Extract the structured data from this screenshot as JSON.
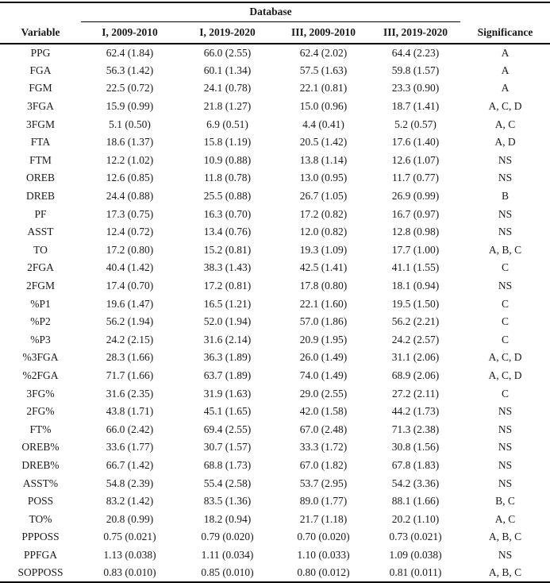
{
  "table": {
    "group_header": "Database",
    "columns": [
      "Variable",
      "I, 2009-2010",
      "I, 2019-2020",
      "III, 2009-2010",
      "III, 2019-2020",
      "Significance"
    ],
    "rows": [
      {
        "variable": "PPG",
        "values": [
          "62.4 (1.84)",
          "66.0 (2.55)",
          "62.4 (2.02)",
          "64.4 (2.23)"
        ],
        "significance": "A"
      },
      {
        "variable": "FGA",
        "values": [
          "56.3 (1.42)",
          "60.1 (1.34)",
          "57.5 (1.63)",
          "59.8 (1.57)"
        ],
        "significance": "A"
      },
      {
        "variable": "FGM",
        "values": [
          "22.5 (0.72)",
          "24.1 (0.78)",
          "22.1 (0.81)",
          "23.3 (0.90)"
        ],
        "significance": "A"
      },
      {
        "variable": "3FGA",
        "values": [
          "15.9 (0.99)",
          "21.8 (1.27)",
          "15.0 (0.96)",
          "18.7 (1.41)"
        ],
        "significance": "A, C, D"
      },
      {
        "variable": "3FGM",
        "values": [
          "5.1 (0.50)",
          "6.9 (0.51)",
          "4.4 (0.41)",
          "5.2 (0.57)"
        ],
        "significance": "A, C"
      },
      {
        "variable": "FTA",
        "values": [
          "18.6 (1.37)",
          "15.8 (1.19)",
          "20.5 (1.42)",
          "17.6 (1.40)"
        ],
        "significance": "A, D"
      },
      {
        "variable": "FTM",
        "values": [
          "12.2 (1.02)",
          "10.9 (0.88)",
          "13.8 (1.14)",
          "12.6 (1.07)"
        ],
        "significance": "NS"
      },
      {
        "variable": "OREB",
        "values": [
          "12.6 (0.85)",
          "11.8 (0.78)",
          "13.0 (0.95)",
          "11.7 (0.77)"
        ],
        "significance": "NS"
      },
      {
        "variable": "DREB",
        "values": [
          "24.4 (0.88)",
          "25.5 (0.88)",
          "26.7 (1.05)",
          "26.9 (0.99)"
        ],
        "significance": "B"
      },
      {
        "variable": "PF",
        "values": [
          "17.3 (0.75)",
          "16.3 (0.70)",
          "17.2 (0.82)",
          "16.7 (0.97)"
        ],
        "significance": "NS"
      },
      {
        "variable": "ASST",
        "values": [
          "12.4 (0.72)",
          "13.4 (0.76)",
          "12.0 (0.82)",
          "12.8 (0.98)"
        ],
        "significance": "NS"
      },
      {
        "variable": "TO",
        "values": [
          "17.2 (0.80)",
          "15.2 (0.81)",
          "19.3 (1.09)",
          "17.7 (1.00)"
        ],
        "significance": "A, B, C"
      },
      {
        "variable": "2FGA",
        "values": [
          "40.4 (1.42)",
          "38.3 (1.43)",
          "42.5 (1.41)",
          "41.1 (1.55)"
        ],
        "significance": "C"
      },
      {
        "variable": "2FGM",
        "values": [
          "17.4 (0.70)",
          "17.2 (0.81)",
          "17.8 (0.80)",
          "18.1 (0.94)"
        ],
        "significance": "NS"
      },
      {
        "variable": "%P1",
        "values": [
          "19.6 (1.47)",
          "16.5 (1.21)",
          "22.1 (1.60)",
          "19.5 (1.50)"
        ],
        "significance": "C"
      },
      {
        "variable": "%P2",
        "values": [
          "56.2 (1.94)",
          "52.0 (1.94)",
          "57.0 (1.86)",
          "56.2 (2.21)"
        ],
        "significance": "C"
      },
      {
        "variable": "%P3",
        "values": [
          "24.2 (2.15)",
          "31.6 (2.14)",
          "20.9 (1.95)",
          "24.2 (2.57)"
        ],
        "significance": "C"
      },
      {
        "variable": "%3FGA",
        "values": [
          "28.3 (1.66)",
          "36.3 (1.89)",
          "26.0 (1.49)",
          "31.1 (2.06)"
        ],
        "significance": "A, C, D"
      },
      {
        "variable": "%2FGA",
        "values": [
          "71.7 (1.66)",
          "63.7 (1.89)",
          "74.0 (1.49)",
          "68.9 (2.06)"
        ],
        "significance": "A, C, D"
      },
      {
        "variable": "3FG%",
        "values": [
          "31.6 (2.35)",
          "31.9 (1.63)",
          "29.0 (2.55)",
          "27.2 (2.11)"
        ],
        "significance": "C"
      },
      {
        "variable": "2FG%",
        "values": [
          "43.8 (1.71)",
          "45.1 (1.65)",
          "42.0 (1.58)",
          "44.2 (1.73)"
        ],
        "significance": "NS"
      },
      {
        "variable": "FT%",
        "values": [
          "66.0 (2.42)",
          "69.4 (2.55)",
          "67.0 (2.48)",
          "71.3 (2.38)"
        ],
        "significance": "NS"
      },
      {
        "variable": "OREB%",
        "values": [
          "33.6 (1.77)",
          "30.7 (1.57)",
          "33.3 (1.72)",
          "30.8 (1.56)"
        ],
        "significance": "NS"
      },
      {
        "variable": "DREB%",
        "values": [
          "66.7 (1.42)",
          "68.8 (1.73)",
          "67.0 (1.82)",
          "67.8 (1.83)"
        ],
        "significance": "NS"
      },
      {
        "variable": "ASST%",
        "values": [
          "54.8 (2.39)",
          "55.4 (2.58)",
          "53.7 (2.95)",
          "54.2 (3.36)"
        ],
        "significance": "NS"
      },
      {
        "variable": "POSS",
        "values": [
          "83.2 (1.42)",
          "83.5 (1.36)",
          "89.0 (1.77)",
          "88.1 (1.66)"
        ],
        "significance": "B, C"
      },
      {
        "variable": "TO%",
        "values": [
          "20.8 (0.99)",
          "18.2 (0.94)",
          "21.7 (1.18)",
          "20.2 (1.10)"
        ],
        "significance": "A, C"
      },
      {
        "variable": "PPPOSS",
        "values": [
          "0.75 (0.021)",
          "0.79 (0.020)",
          "0.70 (0.020)",
          "0.73 (0.021)"
        ],
        "significance": "A, B, C"
      },
      {
        "variable": "PPFGA",
        "values": [
          "1.13 (0.038)",
          "1.11 (0.034)",
          "1.10 (0.033)",
          "1.09 (0.038)"
        ],
        "significance": "NS"
      },
      {
        "variable": "SOPPOSS",
        "values": [
          "0.83 (0.010)",
          "0.85 (0.010)",
          "0.80 (0.012)",
          "0.81 (0.011)"
        ],
        "significance": "A, B, C"
      }
    ]
  }
}
